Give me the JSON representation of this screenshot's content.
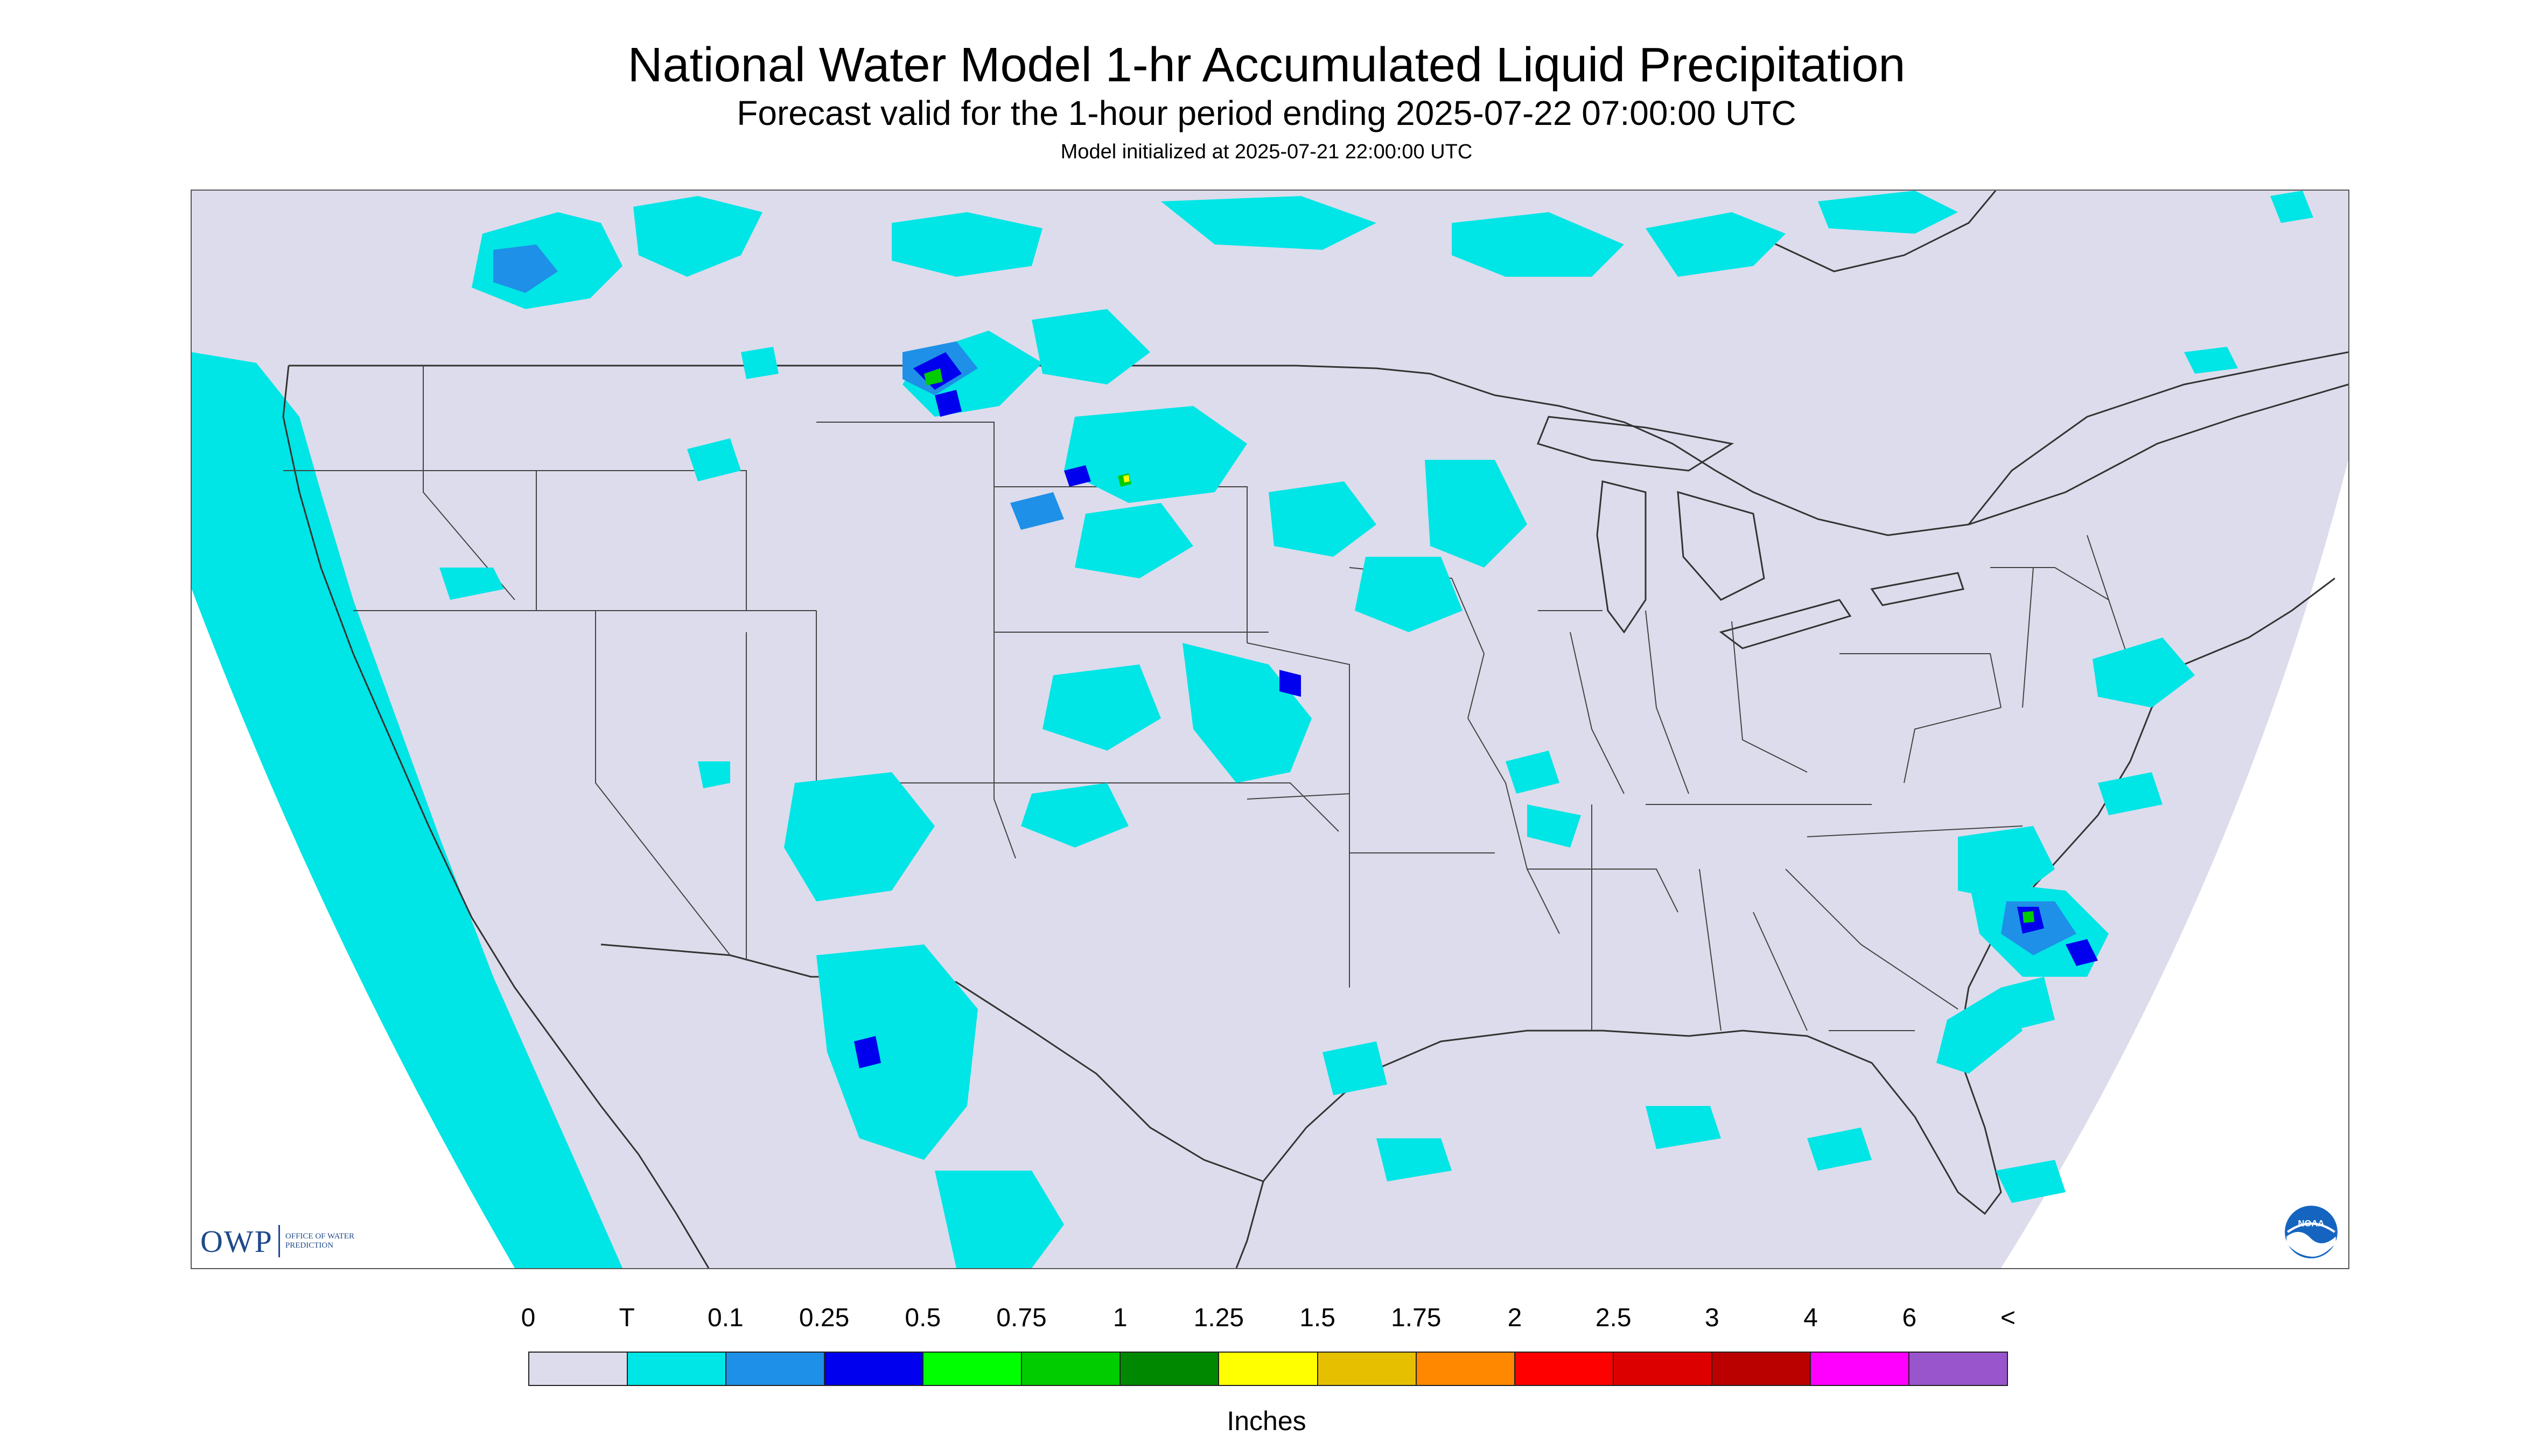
{
  "header": {
    "title": "National Water Model 1-hr Accumulated Liquid Precipitation",
    "subtitle": "Forecast valid for the 1-hour period ending 2025-07-22 07:00:00 UTC",
    "init": "Model initialized at 2025-07-21 22:00:00 UTC"
  },
  "map": {
    "region": "CONUS",
    "background_color": "#dcdcec",
    "outside_domain_color": "#ffffff",
    "border_color": "#333333",
    "water_color": "#dcdcec"
  },
  "logos": {
    "owp_mark": "OWP",
    "owp_text": "OFFICE OF WATER PREDICTION",
    "noaa_text": "NOAA"
  },
  "legend": {
    "labels": [
      "0",
      "T",
      "0.1",
      "0.25",
      "0.5",
      "0.75",
      "1",
      "1.25",
      "1.5",
      "1.75",
      "2",
      "2.5",
      "3",
      "4",
      "6",
      "<"
    ],
    "colors": [
      "#dcdcec",
      "#00e5e5",
      "#1e90e8",
      "#0000ee",
      "#00ff00",
      "#00cc00",
      "#008800",
      "#ffff00",
      "#e6c000",
      "#ff8800",
      "#ff0000",
      "#dd0000",
      "#bb0000",
      "#ff00ff",
      "#9955cc"
    ],
    "unit": "Inches"
  }
}
